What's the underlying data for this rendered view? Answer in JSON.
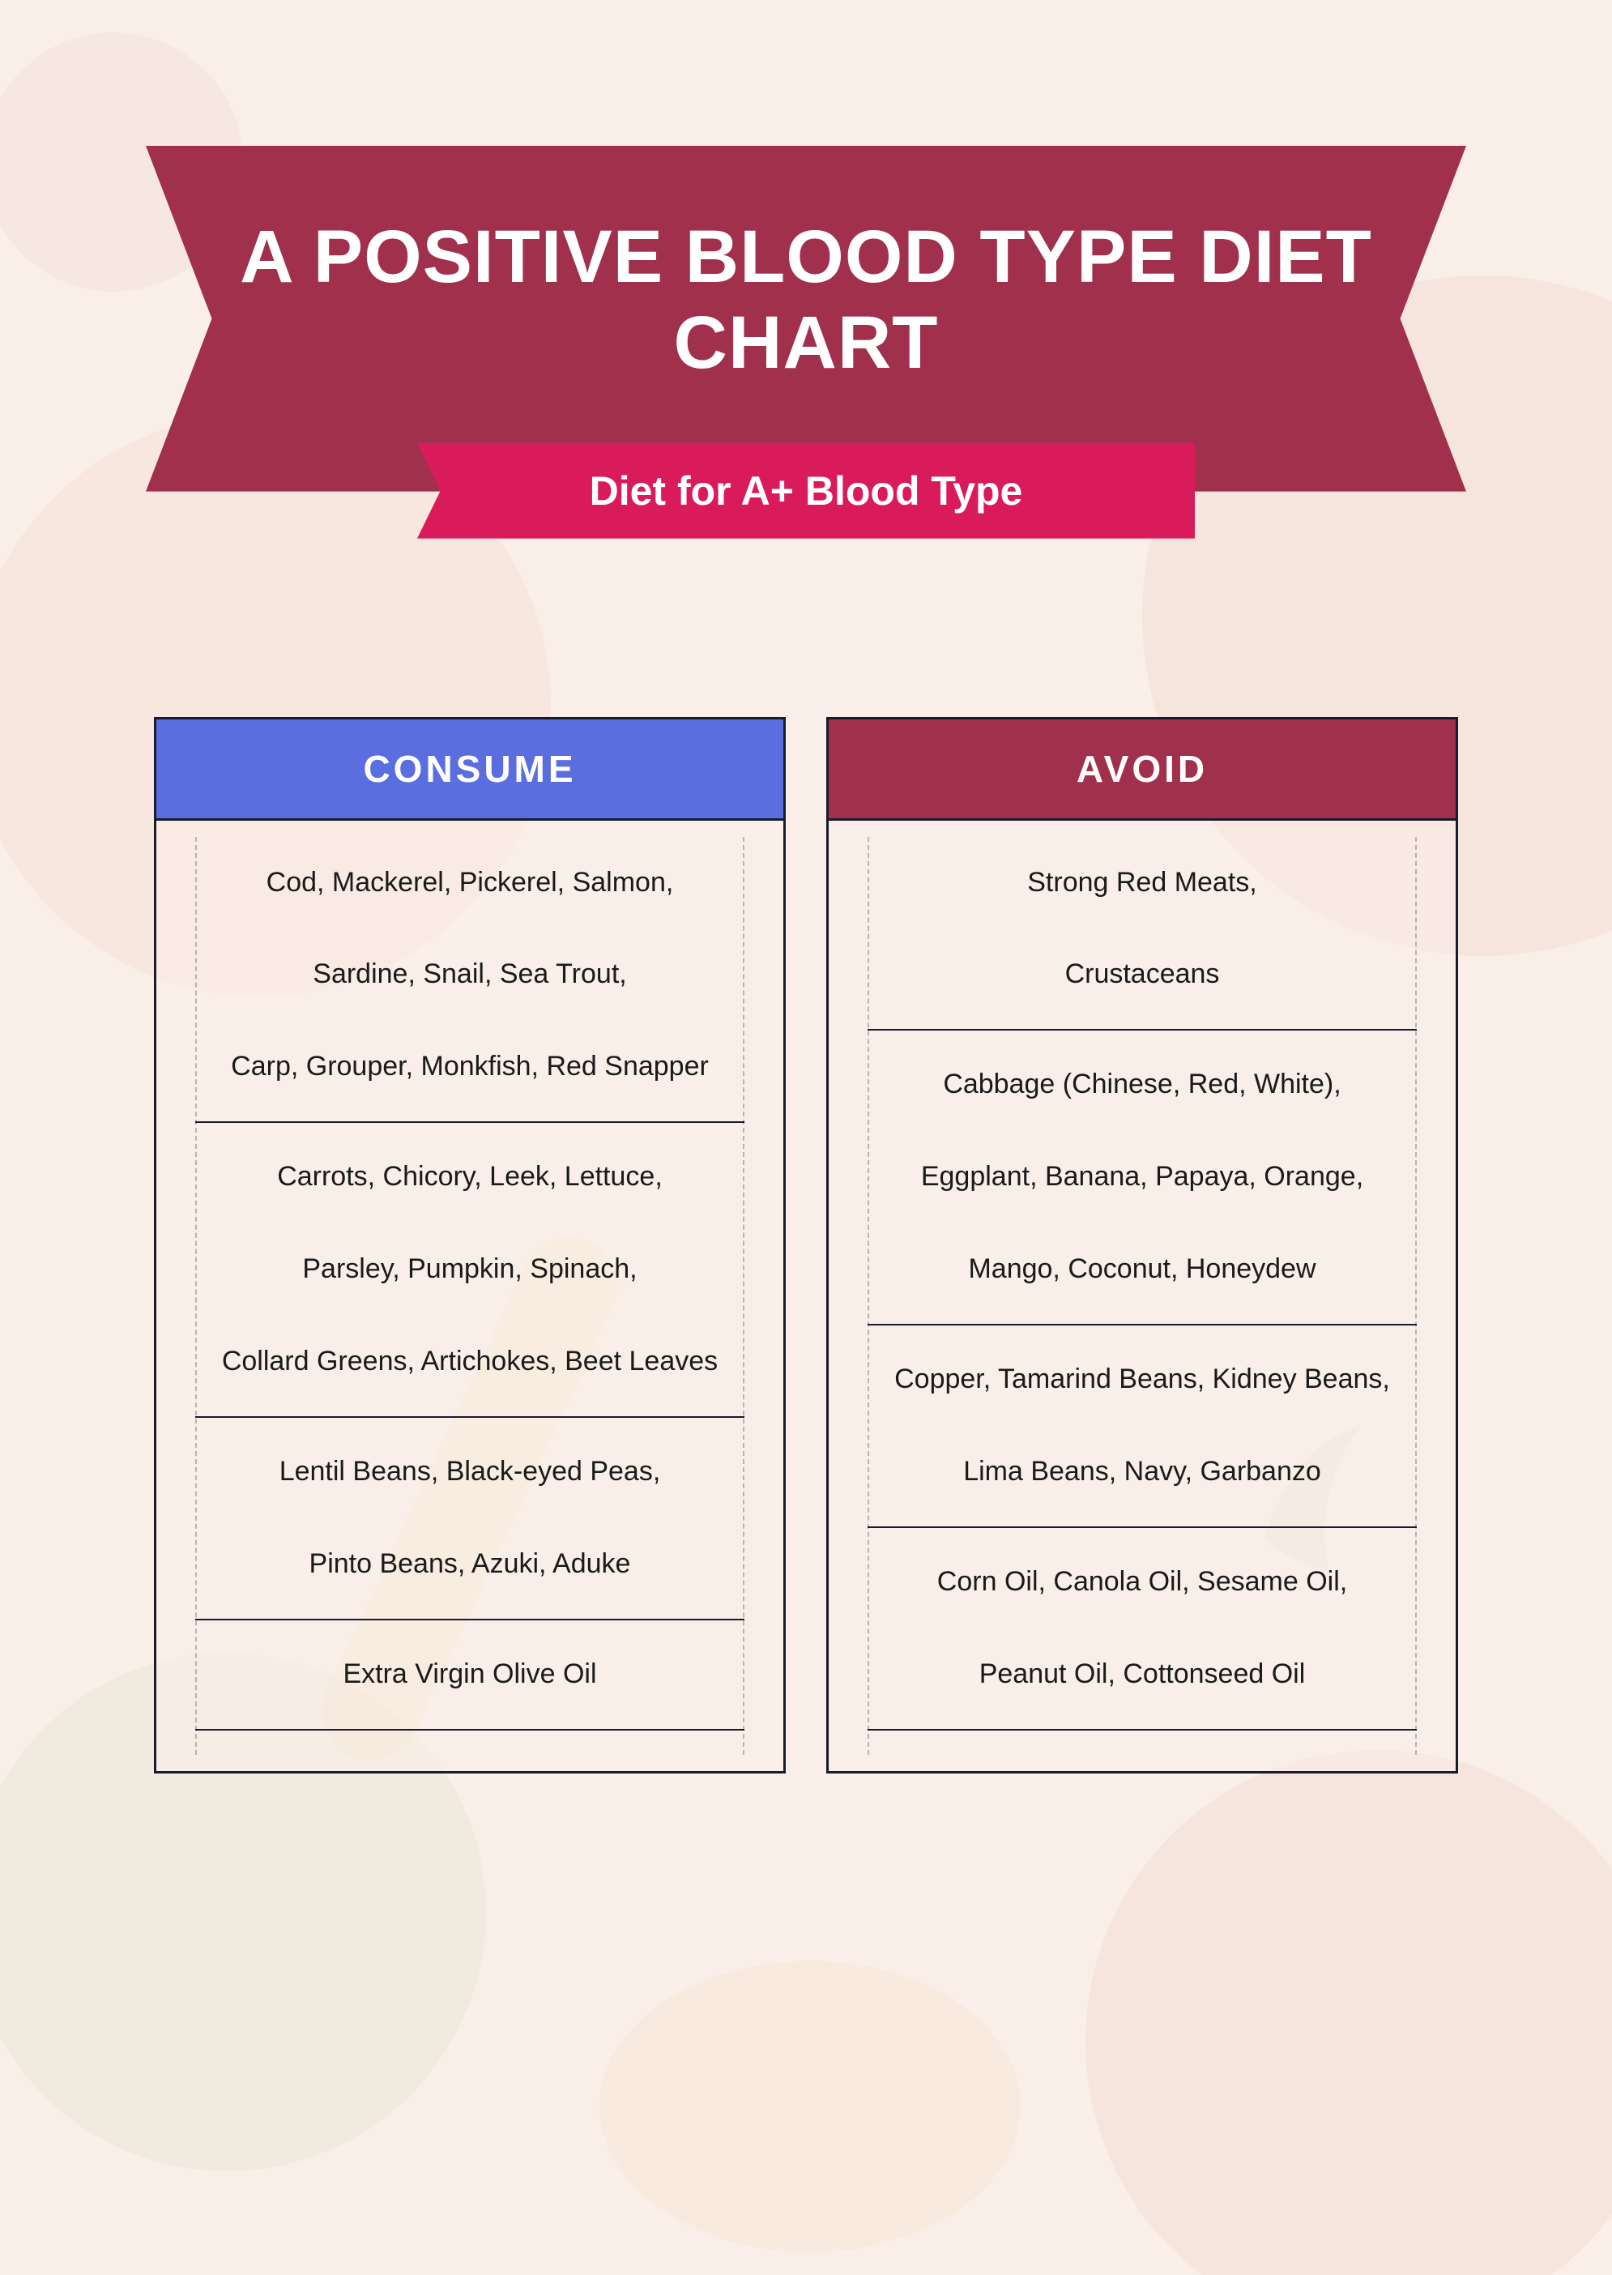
{
  "colors": {
    "page_bg": "#f9efe8",
    "title_banner_bg": "#a1304d",
    "sub_banner_bg": "#d91b5c",
    "consume_header_bg": "#5a6ee0",
    "avoid_header_bg": "#a1304d",
    "header_text": "#ffffff",
    "body_text": "#1a1a1a",
    "border": "#1a1a2e"
  },
  "title": "A POSITIVE BLOOD TYPE DIET CHART",
  "subtitle": "Diet for A+ Blood Type",
  "consume": {
    "header": "CONSUME",
    "groups": [
      [
        "Cod, Mackerel, Pickerel, Salmon,",
        "Sardine, Snail, Sea Trout,",
        "Carp, Grouper, Monkfish, Red Snapper"
      ],
      [
        "Carrots, Chicory, Leek, Lettuce,",
        "Parsley, Pumpkin, Spinach,",
        "Collard Greens, Artichokes, Beet Leaves"
      ],
      [
        "Lentil Beans, Black-eyed Peas,",
        "Pinto Beans, Azuki, Aduke"
      ],
      [
        "Extra Virgin Olive Oil"
      ]
    ]
  },
  "avoid": {
    "header": "AVOID",
    "groups": [
      [
        "Strong Red Meats,",
        "Crustaceans"
      ],
      [
        "Cabbage (Chinese, Red, White),",
        "Eggplant, Banana, Papaya, Orange,",
        "Mango, Coconut, Honeydew"
      ],
      [
        "Copper, Tamarind Beans, Kidney Beans,",
        "Lima Beans, Navy, Garbanzo"
      ],
      [
        "Corn Oil, Canola Oil, Sesame Oil,",
        "Peanut Oil, Cottonseed Oil"
      ]
    ]
  }
}
